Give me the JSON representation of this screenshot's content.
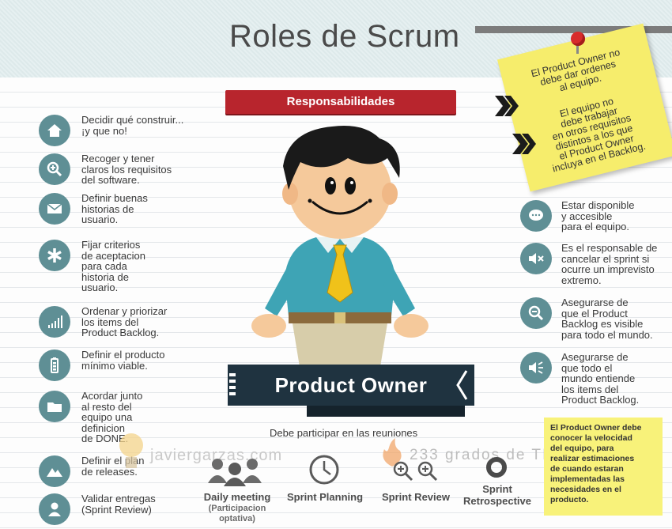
{
  "title": "Roles de Scrum",
  "ribbon": "Responsabilidades",
  "left_items": [
    {
      "icon": "house-icon",
      "text": "Decidir qué construir...\n¡y que no!"
    },
    {
      "icon": "magnifier-plus-icon",
      "text": "Recoger y tener\nclaros los requisitos\ndel software."
    },
    {
      "icon": "envelope-icon",
      "text": "Definir buenas\nhistorias de\nusuario."
    },
    {
      "icon": "asterisk-icon",
      "text": "Fijar criterios\nde aceptacion\npara cada\nhistoria de\nusuario."
    },
    {
      "icon": "bars-icon",
      "text": "Ordenar y priorizar\nlos items del\nProduct Backlog."
    },
    {
      "icon": "battery-icon",
      "text": "Definir el producto\nmínimo viable."
    },
    {
      "icon": "folder-icon",
      "text": "Acordar junto\nal resto del\nequipo una\ndefinicion\nde DONE."
    },
    {
      "icon": "mountain-icon",
      "text": "Definir el plan\nde releases."
    },
    {
      "icon": "user-icon",
      "text": "Validar entregas\n(Sprint Review)"
    }
  ],
  "right_items": [
    {
      "icon": "chat-icon",
      "text": "Estar disponible\ny accesible\npara el equipo."
    },
    {
      "icon": "mute-icon",
      "text": "Es el responsable de\ncancelar el sprint si\nocurre un imprevisto\nextremo."
    },
    {
      "icon": "magnifier-minus-icon",
      "text": "Asegurarse de\nque el Product\nBacklog es visible\npara todo el mundo."
    },
    {
      "icon": "speaker-icon",
      "text": "Asegurarse de\nque todo el\nmundo entiende\nlos items del\nProduct Backlog."
    }
  ],
  "sticky_note": {
    "line1": "El Product Owner no\ndebe dar ordenes\nal equipo.",
    "line2": "El equipo no\ndebe trabajar\nen otros requisitos\ndistintos a los que\nel Product Owner\nincluya en el Backlog."
  },
  "product_owner": "Product Owner",
  "reuniones": "Debe participar en las reuniones",
  "meetings": [
    {
      "icon": "people-icon",
      "label": "Daily meeting",
      "sub": "(Participacion\noptativa)"
    },
    {
      "icon": "clock-icon",
      "label": "Sprint Planning"
    },
    {
      "icon": "double-magnifier-icon",
      "label": "Sprint Review"
    },
    {
      "icon": "ring-icon",
      "label": "Sprint\nRetrospective"
    }
  ],
  "yellow_note": "El Product Owner debe\nconocer la velocidad\ndel equipo, para\nrealizar estimaciones\nde cuando estaran\nimplementadas las\nnecesidades en el\nproducto.",
  "watermark_left": "javiergarzas.com",
  "watermark_right": "233 grados de TI",
  "colors": {
    "icon_bg": "#5f8f95",
    "ribbon": "#b8252d",
    "banner": "#1f3340",
    "note": "#f6ed6c"
  }
}
